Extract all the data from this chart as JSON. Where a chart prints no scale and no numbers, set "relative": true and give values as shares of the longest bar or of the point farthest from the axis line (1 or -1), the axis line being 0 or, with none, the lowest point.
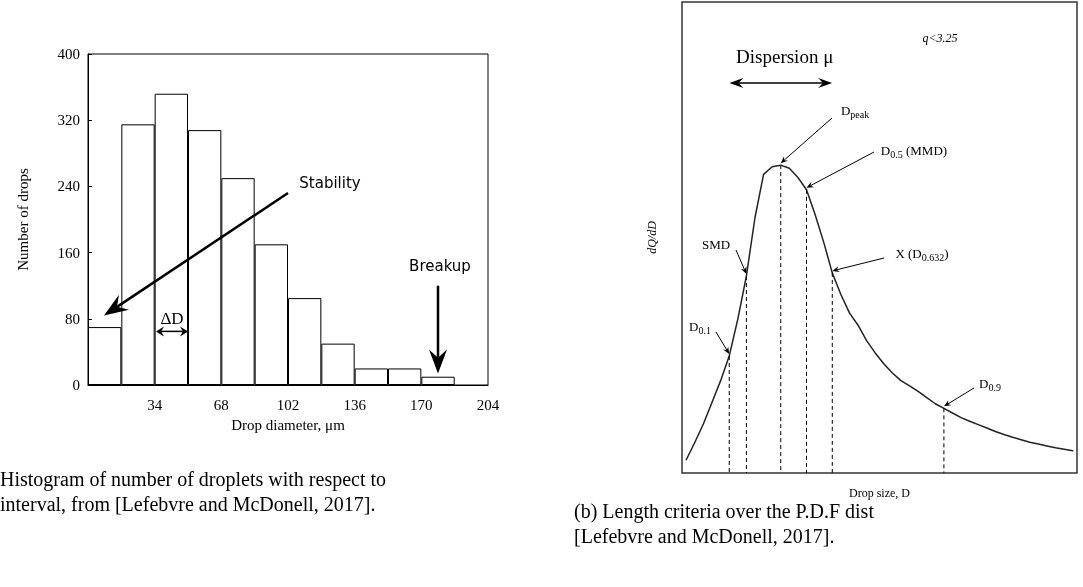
{
  "chart_data": [
    {
      "type": "histogram",
      "xlabel": "Drop diameter, μm",
      "ylabel": "Number of drops",
      "color": "#ffffff",
      "bins": [
        0,
        17,
        34,
        51,
        68,
        85,
        102,
        119,
        136,
        153,
        170,
        187
      ],
      "values": [
        70,
        315,
        352,
        308,
        250,
        170,
        105,
        50,
        20,
        20,
        10
      ],
      "xlim": [
        0,
        204
      ],
      "xticks": [
        34,
        68,
        102,
        136,
        170,
        204
      ],
      "ylim": [
        0,
        400
      ],
      "yticks": [
        0,
        80,
        160,
        240,
        320,
        400
      ],
      "annotations": [
        "Stability",
        "Breakup",
        "ΔD",
        "Histogram of number of droplets with respect to\ninterval, from [Lefebvre and McDonell, 2017]."
      ]
    },
    {
      "type": "line",
      "xlabel": "Drop size, D",
      "ylabel": "dQ/dD",
      "color": "#222222",
      "relative": true,
      "line_style": "solid",
      "categories": [
        null,
        null,
        null,
        null,
        null,
        null,
        null,
        null,
        null,
        null,
        null,
        null,
        null,
        null,
        null,
        null,
        null,
        null,
        null,
        null,
        null,
        null,
        null,
        null,
        null,
        null,
        null,
        null,
        null,
        null,
        null,
        null,
        null,
        null,
        null,
        null,
        null,
        null,
        null,
        null,
        null,
        null,
        null,
        null,
        null,
        null
      ],
      "values": [
        0.043,
        0.1,
        0.16,
        0.23,
        0.3,
        0.38,
        0.5,
        0.64,
        0.83,
        0.97,
        0.995,
        1,
        0.99,
        0.96,
        0.92,
        0.84,
        0.75,
        0.65,
        0.58,
        0.52,
        0.48,
        0.43,
        0.39,
        0.355,
        0.325,
        0.3,
        0.283,
        0.265,
        0.245,
        0.225,
        0.21,
        0.195,
        0.18,
        0.168,
        0.157,
        0.146,
        0.135,
        0.125,
        0.116,
        0.108,
        0.1,
        0.094,
        0.088,
        0.082,
        0.077,
        0.072
      ],
      "annotations": [
        "Dispersion μ",
        "q<3.25",
        "D$_{peak}$",
        "D$_{0.5}$ (MMD)",
        "SMD",
        "X (D$_{0.632}$)",
        "D$_{0.1}$",
        "D$_{0.9}$",
        "(b) Length criteria over the P.D.F dist\n[Lefebvre and McDonell, 2017]."
      ]
    }
  ]
}
